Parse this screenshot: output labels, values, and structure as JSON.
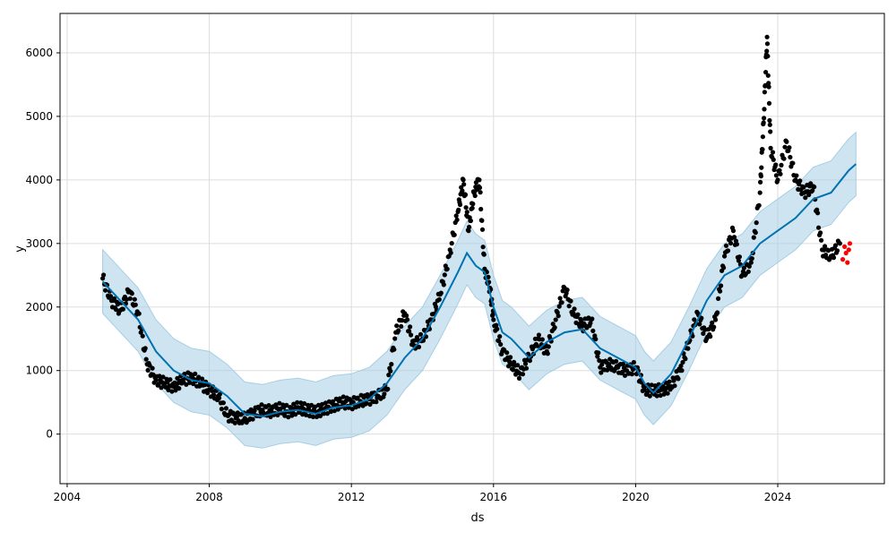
{
  "chart_data": {
    "type": "line",
    "title": "",
    "xlabel": "ds",
    "ylabel": "y",
    "xlim": [
      2003.8,
      2027.0
    ],
    "ylim": [
      -780,
      6620
    ],
    "x_ticks": [
      2004,
      2008,
      2012,
      2016,
      2020,
      2024
    ],
    "x_tick_labels": [
      "2004",
      "2008",
      "2012",
      "2016",
      "2020",
      "2024"
    ],
    "y_ticks": [
      0,
      1000,
      2000,
      3000,
      4000,
      5000,
      6000
    ],
    "y_tick_labels": [
      "0",
      "1000",
      "2000",
      "3000",
      "4000",
      "5000",
      "6000"
    ],
    "grid": true,
    "colors": {
      "forecast_line": "#0072b2",
      "interval_fill": "#a6cee3",
      "observed_points": "#000000",
      "recent_points": "#ff0000",
      "grid": "#dddddd",
      "axes": "#000000"
    },
    "series": [
      {
        "kind": "forecast",
        "x": [
          2005.0,
          2005.5,
          2006.0,
          2006.5,
          2007.0,
          2007.5,
          2008.0,
          2008.5,
          2009.0,
          2009.5,
          2010.0,
          2010.5,
          2011.0,
          2011.5,
          2012.0,
          2012.5,
          2013.0,
          2013.5,
          2014.0,
          2014.5,
          2015.0,
          2015.25,
          2015.5,
          2015.75,
          2016.0,
          2016.25,
          2016.5,
          2017.0,
          2017.5,
          2018.0,
          2018.5,
          2019.0,
          2019.5,
          2020.0,
          2020.25,
          2020.5,
          2020.75,
          2021.0,
          2021.5,
          2022.0,
          2022.5,
          2023.0,
          2023.5,
          2024.0,
          2024.5,
          2025.0,
          2025.5,
          2026.0,
          2026.2
        ],
        "yhat": [
          2400,
          2100,
          1800,
          1300,
          1000,
          850,
          800,
          600,
          320,
          280,
          350,
          380,
          320,
          420,
          450,
          550,
          800,
          1200,
          1500,
          2000,
          2550,
          2850,
          2650,
          2550,
          2000,
          1600,
          1500,
          1200,
          1450,
          1600,
          1650,
          1350,
          1200,
          1050,
          800,
          650,
          800,
          950,
          1500,
          2100,
          2500,
          2650,
          3000,
          3200,
          3400,
          3700,
          3800,
          4150,
          4250
        ],
        "yhat_lower": [
          1900,
          1600,
          1300,
          800,
          500,
          350,
          300,
          100,
          -180,
          -220,
          -150,
          -120,
          -180,
          -80,
          -50,
          50,
          300,
          700,
          1000,
          1500,
          2050,
          2350,
          2150,
          2050,
          1500,
          1100,
          1000,
          700,
          950,
          1100,
          1150,
          850,
          700,
          550,
          300,
          150,
          300,
          450,
          1000,
          1600,
          2000,
          2150,
          2500,
          2700,
          2900,
          3200,
          3300,
          3650,
          3750
        ],
        "yhat_upper": [
          2900,
          2600,
          2300,
          1800,
          1500,
          1350,
          1300,
          1100,
          820,
          780,
          850,
          880,
          820,
          920,
          950,
          1050,
          1300,
          1700,
          2000,
          2500,
          3050,
          3350,
          3150,
          3050,
          2500,
          2100,
          2000,
          1700,
          1950,
          2100,
          2150,
          1850,
          1700,
          1550,
          1300,
          1150,
          1300,
          1450,
          2000,
          2600,
          3000,
          3150,
          3500,
          3700,
          3900,
          4200,
          4300,
          4650,
          4750
        ]
      },
      {
        "kind": "observed",
        "x": [
          2005.0,
          2005.25,
          2005.5,
          2005.75,
          2006.0,
          2006.25,
          2006.5,
          2006.75,
          2007.0,
          2007.25,
          2007.5,
          2007.75,
          2008.0,
          2008.25,
          2008.5,
          2008.75,
          2009.0,
          2009.25,
          2009.5,
          2009.75,
          2010.0,
          2010.25,
          2010.5,
          2010.75,
          2011.0,
          2011.25,
          2011.5,
          2011.75,
          2012.0,
          2012.25,
          2012.5,
          2012.75,
          2013.0,
          2013.25,
          2013.5,
          2013.75,
          2014.0,
          2014.25,
          2014.5,
          2014.75,
          2015.0,
          2015.15,
          2015.3,
          2015.45,
          2015.6,
          2015.75,
          2015.9,
          2016.0,
          2016.25,
          2016.5,
          2016.75,
          2017.0,
          2017.25,
          2017.5,
          2017.75,
          2018.0,
          2018.25,
          2018.5,
          2018.75,
          2019.0,
          2019.25,
          2019.5,
          2019.75,
          2020.0,
          2020.25,
          2020.5,
          2020.75,
          2021.0,
          2021.25,
          2021.5,
          2021.75,
          2022.0,
          2022.25,
          2022.5,
          2022.75,
          2023.0,
          2023.25,
          2023.5,
          2023.6,
          2023.7,
          2023.8,
          2024.0,
          2024.25,
          2024.5,
          2024.75,
          2025.0,
          2025.25,
          2025.5,
          2025.75
        ],
        "y": [
          2450,
          2100,
          1950,
          2250,
          1900,
          1100,
          850,
          800,
          750,
          850,
          900,
          800,
          700,
          600,
          300,
          250,
          250,
          330,
          380,
          360,
          400,
          350,
          420,
          380,
          350,
          400,
          450,
          500,
          480,
          520,
          550,
          600,
          700,
          1600,
          1900,
          1400,
          1500,
          1800,
          2200,
          2800,
          3500,
          4000,
          3200,
          3800,
          4000,
          2600,
          2300,
          1800,
          1300,
          1100,
          950,
          1200,
          1500,
          1300,
          1800,
          2300,
          1900,
          1700,
          1800,
          1050,
          1100,
          1050,
          1000,
          1050,
          700,
          680,
          700,
          750,
          1000,
          1450,
          1900,
          1500,
          1800,
          2800,
          3200,
          2500,
          2700,
          3800,
          4900,
          6250,
          4500,
          4000,
          4600,
          4000,
          3800,
          3900,
          2900,
          2800,
          3000
        ]
      },
      {
        "kind": "recent",
        "x": [
          2025.83,
          2025.88,
          2025.92,
          2025.96,
          2026.0,
          2026.03
        ],
        "y": [
          2750,
          2950,
          2850,
          2700,
          2900,
          3000
        ]
      }
    ]
  }
}
